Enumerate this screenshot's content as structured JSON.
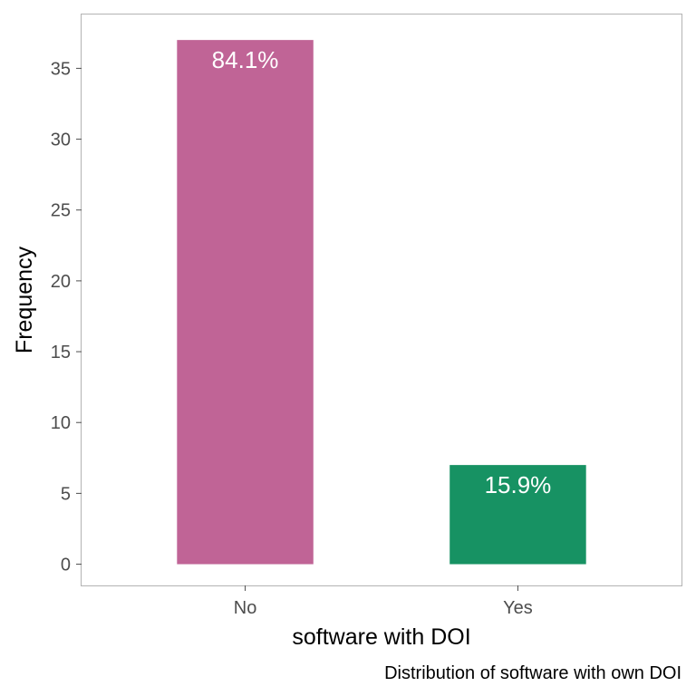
{
  "chart_data": {
    "type": "bar",
    "categories": [
      "No",
      "Yes"
    ],
    "values": [
      37,
      7
    ],
    "data_labels": [
      "84.1%",
      "15.9%"
    ],
    "bar_colors": [
      "#c06496",
      "#179263"
    ],
    "xlabel": "software with DOI",
    "ylabel": "Frequency",
    "caption": "Distribution of software with own DOI",
    "ylim": [
      -1.5,
      38.8
    ],
    "y_ticks": [
      0,
      5,
      10,
      15,
      20,
      25,
      30,
      35
    ],
    "grid": false,
    "panel_border_color": "#b3b3b3",
    "tick_color": "#4d4d4d"
  }
}
